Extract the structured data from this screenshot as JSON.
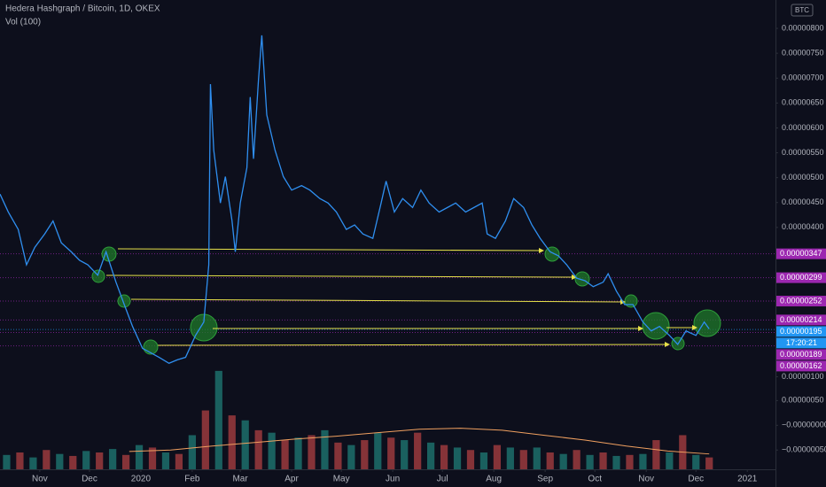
{
  "chart_data": {
    "type": "line",
    "title": "Hedera Hashgraph / Bitcoin, 1D, OKEX",
    "badge": "BTC",
    "countdown": "17:20:21",
    "xlim": [
      -24,
      444
    ],
    "xticks": [
      {
        "value": 0,
        "label": "Nov"
      },
      {
        "value": 30,
        "label": "Dec"
      },
      {
        "value": 61,
        "label": "2020"
      },
      {
        "value": 92,
        "label": "Feb"
      },
      {
        "value": 121,
        "label": "Mar"
      },
      {
        "value": 152,
        "label": "Apr"
      },
      {
        "value": 182,
        "label": "May"
      },
      {
        "value": 213,
        "label": "Jun"
      },
      {
        "value": 243,
        "label": "Jul"
      },
      {
        "value": 274,
        "label": "Aug"
      },
      {
        "value": 305,
        "label": "Sep"
      },
      {
        "value": 335,
        "label": "Oct"
      },
      {
        "value": 366,
        "label": "Nov"
      },
      {
        "value": 396,
        "label": "Dec"
      },
      {
        "value": 427,
        "label": "2021"
      }
    ],
    "ylim": [
      -8.6e-07,
      8.57e-06
    ],
    "yticks": [
      {
        "value": 8e-06,
        "label": "0.00000800"
      },
      {
        "value": 7.5e-06,
        "label": "0.00000750"
      },
      {
        "value": 7e-06,
        "label": "0.00000700"
      },
      {
        "value": 6.5e-06,
        "label": "0.00000650"
      },
      {
        "value": 6e-06,
        "label": "0.00000600"
      },
      {
        "value": 5.5e-06,
        "label": "0.00000550"
      },
      {
        "value": 5e-06,
        "label": "0.00000500"
      },
      {
        "value": 4.5e-06,
        "label": "0.00000450"
      },
      {
        "value": 4e-06,
        "label": "0.00000400"
      },
      {
        "value": 1e-06,
        "label": "0.00000100"
      }
    ],
    "y2lim": [
      -8.9e-07,
      8.6e-06
    ],
    "y2ticks": [
      {
        "value": 5e-07,
        "label": "0.00000050"
      },
      {
        "value": 0,
        "label": "−0.00000000"
      },
      {
        "value": -5e-07,
        "label": "−0.00000050"
      }
    ],
    "levels": [
      {
        "value": 3.47e-06,
        "label": "0.00000347",
        "color": "#9c27b0"
      },
      {
        "value": 2.99e-06,
        "label": "0.00000299",
        "color": "#9c27b0"
      },
      {
        "value": 2.52e-06,
        "label": "0.00000252",
        "color": "#9c27b0"
      },
      {
        "value": 2.14e-06,
        "label": "0.00000214",
        "color": "#9c27b0"
      },
      {
        "value": 1.95e-06,
        "label": "0.00000195",
        "color": "#2196f3"
      },
      {
        "value": 1.89e-06,
        "label": "0.00000189",
        "color": "#9c27b0"
      },
      {
        "value": 1.62e-06,
        "label": "0.00000162",
        "color": "#9c27b0"
      }
    ],
    "series": [
      {
        "color": "#2f8ff0",
        "x": [
          -24,
          -19,
          -13,
          -8,
          -3,
          3,
          8,
          13,
          19,
          24,
          29,
          35,
          40,
          46,
          51,
          56,
          62,
          67,
          72,
          78,
          83,
          88,
          94,
          99,
          102,
          103,
          105,
          109,
          112,
          116,
          118,
          121,
          125,
          127,
          129,
          132,
          134,
          137,
          142,
          147,
          152,
          158,
          163,
          169,
          174,
          179,
          185,
          190,
          195,
          201,
          206,
          209,
          214,
          219,
          225,
          230,
          235,
          241,
          246,
          251,
          257,
          262,
          267,
          270,
          275,
          281,
          286,
          292,
          297,
          302,
          308,
          313,
          318,
          324,
          329,
          334,
          340,
          343,
          348,
          353,
          358,
          364,
          369,
          374,
          380,
          385,
          390,
          396,
          401,
          404
        ],
        "values": [
          4.67e-06,
          4.31e-06,
          3.96e-06,
          3.25e-06,
          3.6e-06,
          3.87e-06,
          4.13e-06,
          3.69e-06,
          3.51e-06,
          3.34e-06,
          3.25e-06,
          3.04e-06,
          3.51e-06,
          2.9e-06,
          2.45e-06,
          2.01e-06,
          1.57e-06,
          1.48e-06,
          1.39e-06,
          1.27e-06,
          1.34e-06,
          1.39e-06,
          1.83e-06,
          2.1e-06,
          3.25e-06,
          6.88e-06,
          5.55e-06,
          4.49e-06,
          5.02e-06,
          4.14e-06,
          3.51e-06,
          4.49e-06,
          5.2e-06,
          6.62e-06,
          5.38e-06,
          6.97e-06,
          7.86e-06,
          6.26e-06,
          5.55e-06,
          5.02e-06,
          4.75e-06,
          4.84e-06,
          4.75e-06,
          4.58e-06,
          4.49e-06,
          4.31e-06,
          3.96e-06,
          4.05e-06,
          3.87e-06,
          3.78e-06,
          4.49e-06,
          4.93e-06,
          4.31e-06,
          4.58e-06,
          4.4e-06,
          4.75e-06,
          4.49e-06,
          4.31e-06,
          4.4e-06,
          4.49e-06,
          4.31e-06,
          4.4e-06,
          4.49e-06,
          3.87e-06,
          3.78e-06,
          4.13e-06,
          4.58e-06,
          4.4e-06,
          4.05e-06,
          3.78e-06,
          3.51e-06,
          3.43e-06,
          3.25e-06,
          2.98e-06,
          2.93e-06,
          2.81e-06,
          2.9e-06,
          3.07e-06,
          2.72e-06,
          2.45e-06,
          2.45e-06,
          2.1e-06,
          1.92e-06,
          2.01e-06,
          1.83e-06,
          1.65e-06,
          1.92e-06,
          1.83e-06,
          2.1e-06,
          1.96e-06
        ]
      },
      {
        "name": "Vol (100)",
        "type": "bar",
        "axis": "y2",
        "colors": [
          "#26a69a88",
          "#ef535088"
        ],
        "x": [
          -20,
          -12,
          -4,
          4,
          12,
          20,
          28,
          36,
          44,
          52,
          60,
          68,
          76,
          84,
          92,
          100,
          108,
          116,
          124,
          132,
          140,
          148,
          156,
          164,
          172,
          180,
          188,
          196,
          204,
          212,
          220,
          228,
          236,
          244,
          252,
          260,
          268,
          276,
          284,
          292,
          300,
          308,
          316,
          324,
          332,
          340,
          348,
          356,
          364,
          372,
          380,
          388,
          396,
          404
        ],
        "values": [
          -6e-07,
          -5.5e-07,
          -6.5e-07,
          -5e-07,
          -5.8e-07,
          -6.2e-07,
          -5.2e-07,
          -5.5e-07,
          -4.8e-07,
          -6e-07,
          -4e-07,
          -4.5e-07,
          -5.5e-07,
          -5.8e-07,
          -2e-07,
          3e-07,
          1.1e-06,
          2e-07,
          1e-07,
          -1e-07,
          -1.5e-07,
          -3e-07,
          -2.5e-07,
          -2e-07,
          -1e-07,
          -3.5e-07,
          -4e-07,
          -3e-07,
          -1.5e-07,
          -2.5e-07,
          -3e-07,
          -1.5e-07,
          -3.5e-07,
          -4e-07,
          -4.5e-07,
          -5e-07,
          -5.5e-07,
          -4e-07,
          -4.5e-07,
          -5e-07,
          -4.5e-07,
          -5.5e-07,
          -5.8e-07,
          -5e-07,
          -6e-07,
          -5.5e-07,
          -6.2e-07,
          -6e-07,
          -5.8e-07,
          -3e-07,
          -5.5e-07,
          -2e-07,
          -6e-07,
          -6.5e-07
        ]
      },
      {
        "type": "line",
        "axis": "y2",
        "color": "#f0a060",
        "x": [
          54,
          79,
          104,
          129,
          154,
          179,
          204,
          229,
          254,
          279,
          304,
          329,
          354,
          379,
          404
        ],
        "values": [
          -5.3e-07,
          -5e-07,
          -4.2e-07,
          -3.5e-07,
          -2.8e-07,
          -2.2e-07,
          -1.5e-07,
          -8e-08,
          -6e-08,
          -1e-07,
          -2e-07,
          -3e-07,
          -4.2e-07,
          -5.2e-07,
          -5.8e-07
        ]
      }
    ]
  }
}
